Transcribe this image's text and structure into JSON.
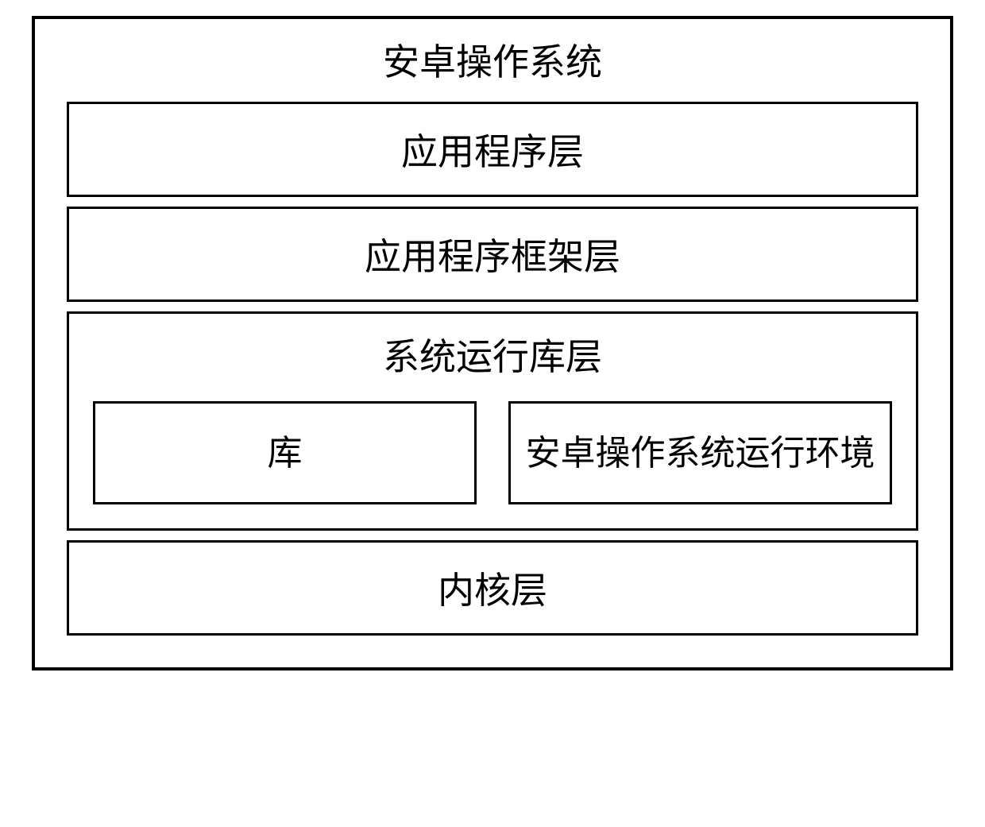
{
  "diagram": {
    "type": "layered-architecture",
    "title": "安卓操作系统",
    "border_color": "#000000",
    "background_color": "#ffffff",
    "text_color": "#000000",
    "title_fontsize": 46,
    "label_fontsize": 46,
    "sub_label_fontsize": 44,
    "font_family": "KaiTi",
    "outer_border_width": 4,
    "inner_border_width": 3,
    "layers": [
      {
        "label": "应用程序层"
      },
      {
        "label": "应用程序框架层"
      }
    ],
    "runtime_layer": {
      "label": "系统运行库层",
      "sub_boxes": [
        {
          "label": "库"
        },
        {
          "label": "安卓操作系统运行环境"
        }
      ]
    },
    "bottom_layer": {
      "label": "内核层"
    }
  }
}
